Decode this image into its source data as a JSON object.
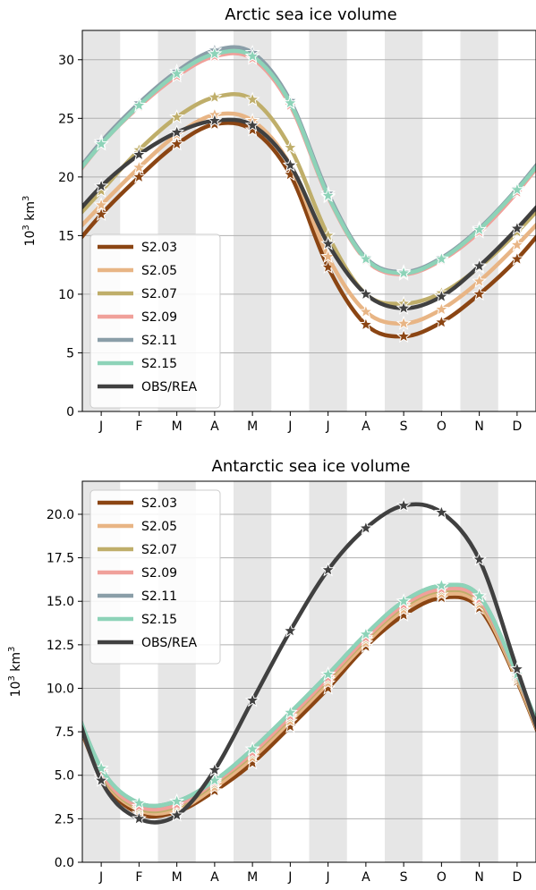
{
  "chart_data": [
    {
      "type": "line",
      "title": "Arctic sea ice volume",
      "ylabel_base": "10",
      "ylabel_exp": "3",
      "ylabel_unit": "km",
      "ylabel_unit_exp": "3",
      "ylim": [
        0,
        32.5
      ],
      "yticks": [
        "0",
        "5",
        "10",
        "15",
        "20",
        "25",
        "30"
      ],
      "ytick_values": [
        0,
        5,
        10,
        15,
        20,
        25,
        30
      ],
      "categories": [
        "J",
        "F",
        "M",
        "A",
        "M",
        "J",
        "J",
        "A",
        "S",
        "O",
        "N",
        "D"
      ],
      "grid": "horizontal",
      "shaded_months": "alternating, starting with J",
      "legend_position": "lower-left",
      "series": [
        {
          "name": "S2.03",
          "color": "#8b4513",
          "values": [
            16.8,
            20.0,
            22.8,
            24.5,
            24.0,
            20.2,
            12.3,
            7.4,
            6.4,
            7.6,
            10.0,
            13.0
          ]
        },
        {
          "name": "S2.05",
          "color": "#e8b585",
          "values": [
            17.6,
            20.8,
            23.6,
            25.3,
            24.8,
            21.0,
            13.2,
            8.5,
            7.5,
            8.7,
            11.1,
            14.2
          ]
        },
        {
          "name": "S2.07",
          "color": "#bfae6a",
          "values": [
            18.8,
            22.3,
            25.1,
            26.8,
            26.6,
            22.5,
            15.0,
            10.0,
            9.2,
            10.1,
            12.3,
            15.3
          ]
        },
        {
          "name": "S2.09",
          "color": "#f0a09a",
          "values": [
            22.8,
            26.0,
            28.6,
            30.3,
            30.1,
            26.1,
            18.3,
            12.9,
            11.7,
            12.9,
            15.3,
            18.7
          ]
        },
        {
          "name": "S2.11",
          "color": "#8a9ea8",
          "values": [
            23.0,
            26.3,
            29.0,
            30.8,
            30.6,
            26.5,
            18.6,
            13.1,
            11.9,
            13.1,
            15.6,
            19.0
          ]
        },
        {
          "name": "S2.15",
          "color": "#8dd3b8",
          "values": [
            22.8,
            26.1,
            28.8,
            30.5,
            30.3,
            26.3,
            18.4,
            13.0,
            11.8,
            13.0,
            15.5,
            18.9
          ]
        },
        {
          "name": "OBS/REA",
          "color": "#404040",
          "values": [
            19.2,
            21.9,
            23.8,
            24.8,
            24.4,
            21.0,
            14.3,
            10.0,
            8.8,
            9.8,
            12.4,
            15.6
          ]
        }
      ]
    },
    {
      "type": "line",
      "title": "Antarctic sea ice volume",
      "ylabel_base": "10",
      "ylabel_exp": "3",
      "ylabel_unit": "km",
      "ylabel_unit_exp": "3",
      "ylim": [
        0,
        21.9
      ],
      "yticks": [
        "0.0",
        "2.5",
        "5.0",
        "7.5",
        "10.0",
        "12.5",
        "15.0",
        "17.5",
        "20.0"
      ],
      "ytick_values": [
        0,
        2.5,
        5,
        7.5,
        10,
        12.5,
        15,
        17.5,
        20
      ],
      "categories": [
        "J",
        "F",
        "M",
        "A",
        "M",
        "J",
        "J",
        "A",
        "S",
        "O",
        "N",
        "D"
      ],
      "grid": "horizontal",
      "shaded_months": "alternating, starting with J",
      "legend_position": "upper-left",
      "series": [
        {
          "name": "S2.03",
          "color": "#8b4513",
          "values": [
            4.9,
            2.8,
            2.9,
            4.1,
            5.7,
            7.8,
            10.0,
            12.4,
            14.2,
            15.2,
            14.6,
            10.4
          ]
        },
        {
          "name": "S2.05",
          "color": "#e8b585",
          "values": [
            5.0,
            3.0,
            3.0,
            4.3,
            6.0,
            8.1,
            10.3,
            12.6,
            14.5,
            15.4,
            14.8,
            10.5
          ]
        },
        {
          "name": "S2.07",
          "color": "#bfae6a",
          "values": [
            5.1,
            3.1,
            3.2,
            4.5,
            6.2,
            8.3,
            10.5,
            12.8,
            14.7,
            15.6,
            15.0,
            10.6
          ]
        },
        {
          "name": "S2.09",
          "color": "#f0a09a",
          "values": [
            5.2,
            3.2,
            3.3,
            4.6,
            6.3,
            8.4,
            10.6,
            12.9,
            14.8,
            15.7,
            15.1,
            10.7
          ]
        },
        {
          "name": "S2.11",
          "color": "#8a9ea8",
          "values": [
            5.4,
            3.4,
            3.5,
            4.7,
            6.5,
            8.6,
            10.8,
            13.1,
            15.0,
            15.9,
            15.3,
            10.8
          ]
        },
        {
          "name": "S2.15",
          "color": "#8dd3b8",
          "values": [
            5.4,
            3.4,
            3.5,
            4.7,
            6.5,
            8.6,
            10.8,
            13.1,
            15.0,
            15.9,
            15.3,
            10.8
          ]
        },
        {
          "name": "OBS/REA",
          "color": "#404040",
          "values": [
            4.7,
            2.5,
            2.7,
            5.3,
            9.3,
            13.3,
            16.8,
            19.2,
            20.5,
            20.1,
            17.4,
            11.1
          ]
        }
      ]
    }
  ]
}
